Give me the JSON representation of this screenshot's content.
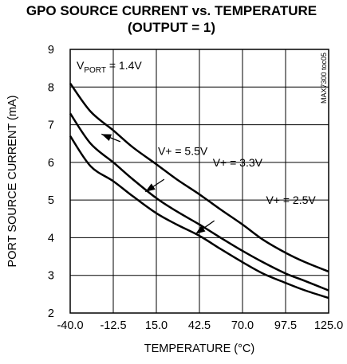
{
  "chart_data": {
    "type": "line",
    "title": "GPO SOURCE CURRENT vs. TEMPERATURE",
    "subtitle": "(OUTPUT = 1)",
    "xlabel": "TEMPERATURE (°C)",
    "ylabel": "PORT SOURCE CURRENT (mA)",
    "xlim": [
      -40,
      125
    ],
    "ylim": [
      2,
      9
    ],
    "xticks": [
      "-40.0",
      "-12.5",
      "15.0",
      "42.5",
      "70.0",
      "97.5",
      "125.0"
    ],
    "yticks": [
      "2",
      "3",
      "4",
      "5",
      "6",
      "7",
      "8",
      "9"
    ],
    "grid": true,
    "condition": {
      "prefix": "V",
      "sub": "PORT",
      "suffix": " = 1.4V"
    },
    "side_label": "MAX7300 toc05",
    "series": [
      {
        "name": "V+ = 5.5V",
        "x": [
          -40,
          -27,
          -12.5,
          0,
          15,
          28,
          42.5,
          56,
          70,
          83,
          97.5,
          110,
          125
        ],
        "y": [
          8.1,
          7.35,
          6.85,
          6.4,
          5.95,
          5.55,
          5.15,
          4.75,
          4.35,
          3.95,
          3.6,
          3.35,
          3.1
        ]
      },
      {
        "name": "V+ = 3.3V",
        "x": [
          -40,
          -27,
          -12.5,
          0,
          15,
          28,
          42.5,
          56,
          70,
          83,
          97.5,
          110,
          125
        ],
        "y": [
          7.3,
          6.5,
          6.0,
          5.55,
          5.05,
          4.7,
          4.35,
          4.0,
          3.65,
          3.35,
          3.05,
          2.85,
          2.6
        ]
      },
      {
        "name": "V+ = 2.5V",
        "x": [
          -40,
          -27,
          -12.5,
          0,
          15,
          28,
          42.5,
          56,
          70,
          83,
          97.5,
          110,
          125
        ],
        "y": [
          6.7,
          5.9,
          5.5,
          5.1,
          4.65,
          4.35,
          4.05,
          3.7,
          3.35,
          3.05,
          2.8,
          2.6,
          2.4
        ]
      }
    ]
  }
}
